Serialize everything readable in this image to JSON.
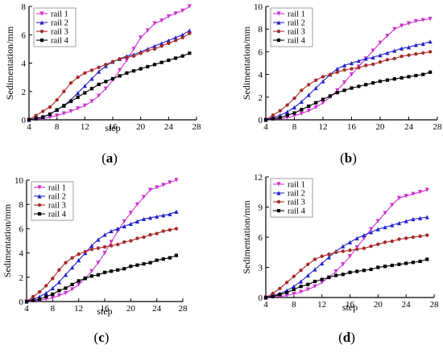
{
  "chart_data": [
    {
      "type": "line",
      "panel_label": "(a)",
      "xlabel": "step",
      "ylabel": "Sedimentation/mm",
      "xlim": [
        4,
        28
      ],
      "ylim": [
        0,
        8
      ],
      "xticks": [
        4,
        8,
        12,
        16,
        20,
        24,
        28
      ],
      "yticks": [
        0,
        2,
        4,
        6,
        8
      ],
      "x": [
        4,
        5,
        6,
        7,
        8,
        9,
        10,
        11,
        12,
        13,
        14,
        15,
        16,
        17,
        18,
        19,
        20,
        21,
        22,
        23,
        24,
        25,
        26,
        27
      ],
      "legend_position": "top-left",
      "series": [
        {
          "name": "rail 1",
          "color": "#cc33cc",
          "marker": "triangle-down",
          "values": [
            0,
            0.05,
            0.1,
            0.18,
            0.3,
            0.45,
            0.6,
            0.8,
            1.0,
            1.3,
            1.7,
            2.2,
            2.8,
            3.5,
            4.2,
            5.0,
            5.8,
            6.3,
            6.8,
            7.0,
            7.3,
            7.5,
            7.7,
            8.0
          ]
        },
        {
          "name": "rail 2",
          "color": "#2222cc",
          "marker": "triangle-up",
          "values": [
            0,
            0.1,
            0.2,
            0.4,
            0.7,
            1.0,
            1.4,
            1.9,
            2.4,
            2.9,
            3.4,
            3.8,
            4.1,
            4.3,
            4.5,
            4.6,
            4.8,
            5.0,
            5.2,
            5.4,
            5.6,
            5.8,
            6.0,
            6.3
          ]
        },
        {
          "name": "rail 3",
          "color": "#a52a2a",
          "marker": "circle",
          "values": [
            0,
            0.3,
            0.6,
            0.9,
            1.4,
            2.0,
            2.6,
            3.0,
            3.3,
            3.5,
            3.7,
            3.9,
            4.1,
            4.3,
            4.4,
            4.5,
            4.7,
            4.9,
            5.0,
            5.2,
            5.4,
            5.6,
            5.8,
            6.1
          ]
        },
        {
          "name": "rail 4",
          "color": "#000000",
          "marker": "square",
          "values": [
            0,
            0.1,
            0.2,
            0.4,
            0.7,
            1.0,
            1.3,
            1.6,
            1.9,
            2.2,
            2.5,
            2.7,
            2.9,
            3.1,
            3.3,
            3.45,
            3.6,
            3.75,
            3.9,
            4.05,
            4.2,
            4.35,
            4.5,
            4.7
          ]
        }
      ]
    },
    {
      "type": "line",
      "panel_label": "(b)",
      "xlabel": "",
      "ylabel": "Sedimentation/mm",
      "xlim": [
        4,
        28
      ],
      "ylim": [
        0,
        10
      ],
      "xticks": [
        4,
        8,
        12,
        16,
        20,
        24,
        28
      ],
      "yticks": [
        0,
        2,
        4,
        6,
        8,
        10
      ],
      "x": [
        4,
        5,
        6,
        7,
        8,
        9,
        10,
        11,
        12,
        13,
        14,
        15,
        16,
        17,
        18,
        19,
        20,
        21,
        22,
        23,
        24,
        25,
        26,
        27
      ],
      "legend_position": "top-left",
      "series": [
        {
          "name": "rail 1",
          "color": "#cc33cc",
          "marker": "triangle-down",
          "values": [
            0,
            0.05,
            0.1,
            0.2,
            0.35,
            0.55,
            0.8,
            1.1,
            1.5,
            2.0,
            2.6,
            3.3,
            4.0,
            4.7,
            5.4,
            6.1,
            6.8,
            7.4,
            8.0,
            8.3,
            8.5,
            8.7,
            8.8,
            8.9
          ]
        },
        {
          "name": "rail 2",
          "color": "#2222cc",
          "marker": "triangle-up",
          "values": [
            0,
            0.2,
            0.4,
            0.7,
            1.1,
            1.6,
            2.2,
            2.8,
            3.4,
            4.0,
            4.5,
            4.8,
            5.0,
            5.2,
            5.4,
            5.5,
            5.7,
            5.9,
            6.1,
            6.3,
            6.4,
            6.6,
            6.7,
            6.9
          ]
        },
        {
          "name": "rail 3",
          "color": "#a52a2a",
          "marker": "circle",
          "values": [
            0,
            0.4,
            0.8,
            1.3,
            1.9,
            2.6,
            3.1,
            3.5,
            3.8,
            4.0,
            4.2,
            4.4,
            4.5,
            4.6,
            4.8,
            4.9,
            5.1,
            5.3,
            5.4,
            5.6,
            5.7,
            5.8,
            5.9,
            6.0
          ]
        },
        {
          "name": "rail 4",
          "color": "#000000",
          "marker": "square",
          "values": [
            0,
            0.1,
            0.2,
            0.4,
            0.6,
            0.9,
            1.2,
            1.5,
            1.8,
            2.1,
            2.4,
            2.6,
            2.8,
            2.95,
            3.1,
            3.25,
            3.4,
            3.5,
            3.6,
            3.7,
            3.8,
            3.9,
            4.0,
            4.2
          ]
        }
      ]
    },
    {
      "type": "line",
      "panel_label": "(c)",
      "xlabel": "step",
      "ylabel": "Sedimentation/mm",
      "xlim": [
        4,
        28
      ],
      "ylim": [
        0,
        10
      ],
      "xticks": [
        4,
        8,
        12,
        16,
        20,
        24,
        28
      ],
      "yticks": [
        0,
        2,
        4,
        6,
        8,
        10
      ],
      "x": [
        4,
        5,
        6,
        7,
        8,
        9,
        10,
        11,
        12,
        13,
        14,
        15,
        16,
        17,
        18,
        19,
        20,
        21,
        22,
        23,
        24,
        25,
        26,
        27
      ],
      "legend_position": "top-left",
      "series": [
        {
          "name": "rail 1",
          "color": "#cc33cc",
          "marker": "triangle-down",
          "values": [
            0,
            0.05,
            0.1,
            0.2,
            0.3,
            0.5,
            0.7,
            1.0,
            1.4,
            1.9,
            2.5,
            3.2,
            4.0,
            4.9,
            5.8,
            6.6,
            7.3,
            8.0,
            8.6,
            9.2,
            9.4,
            9.6,
            9.8,
            10.0
          ]
        },
        {
          "name": "rail 2",
          "color": "#2222cc",
          "marker": "triangle-up",
          "values": [
            0,
            0.2,
            0.4,
            0.7,
            1.1,
            1.6,
            2.2,
            2.8,
            3.4,
            4.0,
            4.6,
            5.1,
            5.5,
            5.8,
            6.0,
            6.2,
            6.4,
            6.6,
            6.8,
            6.9,
            7.0,
            7.1,
            7.2,
            7.4
          ]
        },
        {
          "name": "rail 3",
          "color": "#a52a2a",
          "marker": "circle",
          "values": [
            0,
            0.4,
            0.8,
            1.3,
            1.9,
            2.6,
            3.2,
            3.6,
            3.9,
            4.1,
            4.3,
            4.4,
            4.5,
            4.6,
            4.7,
            4.9,
            5.0,
            5.2,
            5.3,
            5.5,
            5.6,
            5.8,
            5.9,
            6.0
          ]
        },
        {
          "name": "rail 4",
          "color": "#000000",
          "marker": "square",
          "values": [
            0,
            0.1,
            0.2,
            0.4,
            0.6,
            0.9,
            1.1,
            1.4,
            1.7,
            1.9,
            2.1,
            2.2,
            2.4,
            2.5,
            2.6,
            2.7,
            2.9,
            3.0,
            3.1,
            3.2,
            3.4,
            3.5,
            3.6,
            3.8
          ]
        }
      ]
    },
    {
      "type": "line",
      "panel_label": "(d)",
      "xlabel": "step",
      "ylabel": "Sedimentation/mm",
      "xlim": [
        4,
        28
      ],
      "ylim": [
        0,
        12
      ],
      "xticks": [
        4,
        8,
        12,
        16,
        20,
        24,
        28
      ],
      "yticks": [
        0,
        3,
        6,
        9,
        12
      ],
      "x": [
        4,
        5,
        6,
        7,
        8,
        9,
        10,
        11,
        12,
        13,
        14,
        15,
        16,
        17,
        18,
        19,
        20,
        21,
        22,
        23,
        24,
        25,
        26,
        27
      ],
      "legend_position": "top-left",
      "series": [
        {
          "name": "rail 1",
          "color": "#cc33cc",
          "marker": "triangle-down",
          "values": [
            0,
            0.05,
            0.1,
            0.2,
            0.35,
            0.55,
            0.8,
            1.1,
            1.5,
            2.0,
            2.6,
            3.3,
            4.1,
            5.0,
            5.9,
            6.8,
            7.6,
            8.4,
            9.2,
            9.9,
            10.1,
            10.3,
            10.5,
            10.7
          ]
        },
        {
          "name": "rail 2",
          "color": "#2222cc",
          "marker": "triangle-up",
          "values": [
            0,
            0.2,
            0.4,
            0.7,
            1.1,
            1.6,
            2.2,
            2.8,
            3.4,
            4.0,
            4.6,
            5.1,
            5.5,
            5.9,
            6.2,
            6.5,
            6.8,
            7.0,
            7.2,
            7.4,
            7.6,
            7.8,
            7.9,
            8.0
          ]
        },
        {
          "name": "rail 3",
          "color": "#a52a2a",
          "marker": "circle",
          "values": [
            0,
            0.4,
            0.9,
            1.5,
            2.1,
            2.7,
            3.3,
            3.8,
            4.1,
            4.3,
            4.5,
            4.6,
            4.7,
            4.8,
            4.9,
            5.1,
            5.3,
            5.5,
            5.6,
            5.8,
            5.9,
            6.0,
            6.1,
            6.2
          ]
        },
        {
          "name": "rail 4",
          "color": "#000000",
          "marker": "square",
          "values": [
            0,
            0.1,
            0.3,
            0.5,
            0.8,
            1.1,
            1.3,
            1.6,
            1.8,
            2.0,
            2.2,
            2.3,
            2.5,
            2.6,
            2.7,
            2.8,
            3.0,
            3.1,
            3.2,
            3.3,
            3.4,
            3.5,
            3.6,
            3.8
          ]
        }
      ]
    }
  ]
}
